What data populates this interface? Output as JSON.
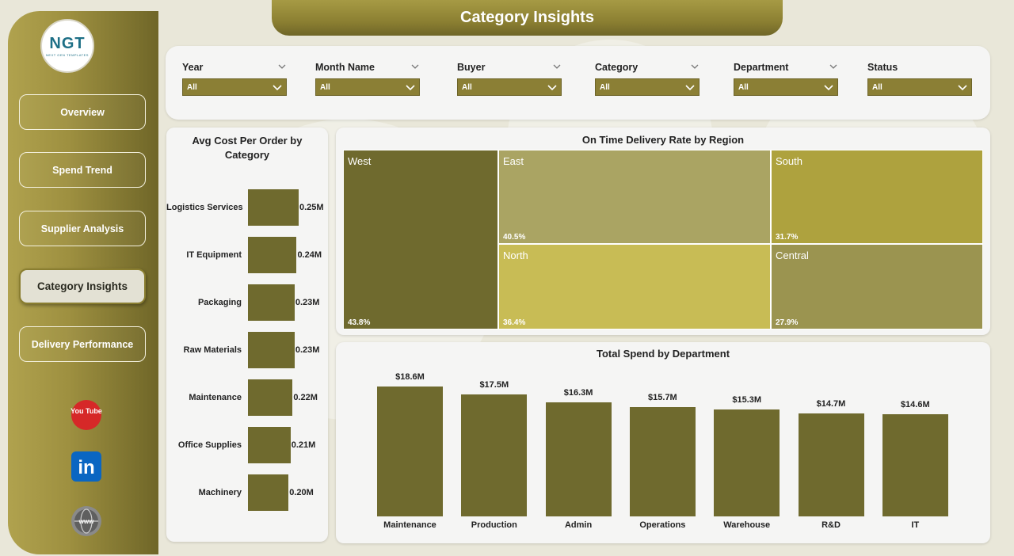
{
  "title": "Category Insights",
  "logo": {
    "text": "NGT",
    "subtitle": "NEXT GEN TEMPLATES"
  },
  "nav": [
    {
      "label": "Overview",
      "active": false
    },
    {
      "label": "Spend Trend",
      "active": false
    },
    {
      "label": "Supplier Analysis",
      "active": false
    },
    {
      "label": "Category Insights",
      "active": true
    },
    {
      "label": "Delivery Performance",
      "active": false
    }
  ],
  "social": [
    {
      "icon": "youtube-icon",
      "text": "You Tube",
      "color": "#d62828"
    },
    {
      "icon": "linkedin-icon",
      "text": "in",
      "color": "#0a66c2"
    },
    {
      "icon": "globe-icon",
      "text": "www",
      "color": "#6b6b6b"
    }
  ],
  "filters": [
    {
      "label": "Year",
      "value": "All"
    },
    {
      "label": "Month Name",
      "value": "All"
    },
    {
      "label": "Buyer",
      "value": "All"
    },
    {
      "label": "Category",
      "value": "All"
    },
    {
      "label": "Department",
      "value": "All"
    },
    {
      "label": "Status",
      "value": "All"
    }
  ],
  "colors": {
    "accent": "#8b7f35",
    "bar": "#6f6a2e"
  },
  "chart_data": [
    {
      "type": "bar",
      "orientation": "horizontal",
      "title": "Avg Cost Per Order by Category",
      "categories": [
        "Logistics Services",
        "IT Equipment",
        "Packaging",
        "Raw Materials",
        "Maintenance",
        "Office Supplies",
        "Machinery"
      ],
      "values": [
        0.25,
        0.24,
        0.23,
        0.23,
        0.22,
        0.21,
        0.2
      ],
      "labels": [
        "0.25M",
        "0.24M",
        "0.23M",
        "0.23M",
        "0.22M",
        "0.21M",
        "0.20M"
      ],
      "xlim": [
        0,
        0.25
      ]
    },
    {
      "type": "treemap",
      "title": "On Time Delivery Rate by Region",
      "items": [
        {
          "name": "West",
          "value": 43.8,
          "label": "43.8%",
          "color": "#6f6a2e"
        },
        {
          "name": "East",
          "value": 40.5,
          "label": "40.5%",
          "color": "#aaa463"
        },
        {
          "name": "North",
          "value": 36.4,
          "label": "36.4%",
          "color": "#c8bc55"
        },
        {
          "name": "South",
          "value": 31.7,
          "label": "31.7%",
          "color": "#aea23e"
        },
        {
          "name": "Central",
          "value": 27.9,
          "label": "27.9%",
          "color": "#9b9450"
        }
      ]
    },
    {
      "type": "bar",
      "title": "Total Spend by Department",
      "categories": [
        "Maintenance",
        "Production",
        "Admin",
        "Operations",
        "Warehouse",
        "R&D",
        "IT"
      ],
      "values": [
        18.6,
        17.5,
        16.3,
        15.7,
        15.3,
        14.7,
        14.6
      ],
      "labels": [
        "$18.6M",
        "$17.5M",
        "$16.3M",
        "$15.7M",
        "$15.3M",
        "$14.7M",
        "$14.6M"
      ],
      "ylim": [
        0,
        18.6
      ]
    }
  ]
}
